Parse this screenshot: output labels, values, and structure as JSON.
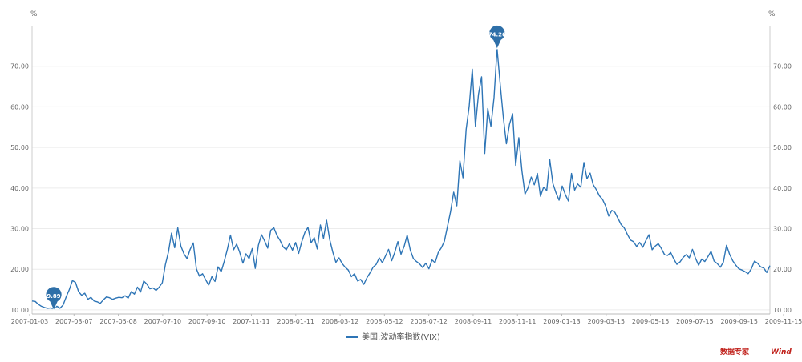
{
  "chart_data": {
    "type": "line",
    "y_unit_left": "%",
    "y_unit_right": "%",
    "ylim": [
      9,
      80
    ],
    "y_ticks": [
      "10.00",
      "20.00",
      "30.00",
      "40.00",
      "50.00",
      "60.00",
      "70.00"
    ],
    "y_tick_values": [
      10,
      20,
      30,
      40,
      50,
      60,
      70
    ],
    "x_ticks": [
      "2007-01-03",
      "2007-03-07",
      "2007-05-08",
      "2007-07-10",
      "2007-09-10",
      "2007-11-11",
      "2008-01-11",
      "2008-03-12",
      "2008-05-12",
      "2008-07-12",
      "2008-09-11",
      "2008-11-11",
      "2009-01-13",
      "2009-03-15",
      "2009-05-15",
      "2009-07-15",
      "2009-09-15",
      "2009-11-15"
    ],
    "series": [
      {
        "name": "美国:波动率指数(VIX)",
        "color": "#2e75b6",
        "values": [
          12.2,
          12.1,
          11.4,
          10.9,
          10.6,
          10.4,
          10.5,
          10.2,
          10.9,
          10.4,
          11.2,
          13.2,
          15.0,
          17.2,
          16.8,
          14.5,
          13.6,
          14.1,
          12.6,
          13.1,
          12.2,
          12.0,
          11.6,
          12.5,
          13.2,
          13.0,
          12.6,
          12.9,
          13.1,
          13.0,
          13.5,
          12.9,
          14.5,
          13.9,
          15.6,
          14.4,
          17.1,
          16.4,
          15.2,
          15.4,
          14.8,
          15.6,
          16.7,
          21.1,
          24.3,
          28.9,
          25.3,
          30.2,
          25.7,
          23.8,
          22.6,
          24.9,
          26.5,
          20.1,
          18.3,
          18.9,
          17.4,
          16.1,
          18.2,
          17.0,
          20.6,
          19.4,
          22.0,
          24.9,
          28.4,
          24.8,
          26.2,
          24.1,
          21.5,
          23.8,
          22.6,
          25.1,
          20.2,
          25.9,
          28.5,
          27.0,
          25.2,
          29.6,
          30.2,
          28.3,
          27.1,
          25.5,
          24.8,
          26.3,
          24.7,
          26.6,
          23.9,
          26.8,
          29.1,
          30.3,
          26.5,
          27.8,
          25.0,
          30.9,
          27.6,
          32.1,
          27.3,
          24.2,
          21.7,
          22.8,
          21.4,
          20.5,
          19.8,
          18.2,
          18.9,
          17.1,
          17.5,
          16.3,
          17.9,
          19.1,
          20.5,
          21.2,
          22.8,
          21.6,
          23.3,
          24.9,
          22.1,
          24.2,
          26.8,
          23.7,
          25.6,
          28.4,
          24.7,
          22.6,
          21.9,
          21.3,
          20.4,
          21.5,
          20.1,
          22.3,
          21.6,
          24.1,
          25.3,
          26.9,
          30.6,
          34.2,
          39.0,
          35.6,
          46.7,
          42.5,
          54.4,
          60.1,
          69.3,
          55.2,
          63.1,
          67.4,
          48.5,
          59.6,
          55.2,
          62.3,
          74.3,
          65.5,
          57.4,
          50.9,
          55.7,
          58.3,
          45.6,
          52.4,
          44.2,
          38.5,
          40.1,
          42.7,
          40.8,
          43.6,
          38.0,
          40.2,
          39.4,
          47.0,
          41.1,
          38.8,
          37.0,
          40.5,
          38.4,
          36.8,
          43.6,
          39.5,
          41.0,
          40.2,
          46.3,
          42.3,
          43.7,
          40.8,
          39.6,
          38.1,
          37.2,
          35.6,
          33.1,
          34.5,
          34.0,
          32.5,
          31.0,
          30.2,
          28.6,
          27.2,
          26.8,
          25.6,
          26.6,
          25.4,
          27.1,
          28.5,
          24.8,
          25.7,
          26.3,
          25.1,
          23.6,
          23.4,
          24.1,
          22.5,
          21.2,
          21.8,
          22.9,
          23.6,
          22.8,
          24.9,
          22.7,
          21.0,
          22.5,
          21.9,
          23.1,
          24.4,
          22.0,
          21.4,
          20.5,
          21.8,
          25.9,
          23.7,
          22.1,
          21.0,
          20.1,
          19.8,
          19.4,
          18.9,
          20.1,
          22.0,
          21.5,
          20.6,
          20.3,
          19.2,
          20.9
        ],
        "points_note": ""
      }
    ],
    "markers": [
      {
        "label": "9.89",
        "value": 9.89,
        "kind": "min"
      },
      {
        "label": "74.26",
        "value": 74.26,
        "kind": "max"
      }
    ],
    "legend": {
      "position": "bottom-center"
    },
    "grid": true
  },
  "watermark": {
    "text_a": "数据专家",
    "text_b": "Wind",
    "color": "#c0201a"
  }
}
